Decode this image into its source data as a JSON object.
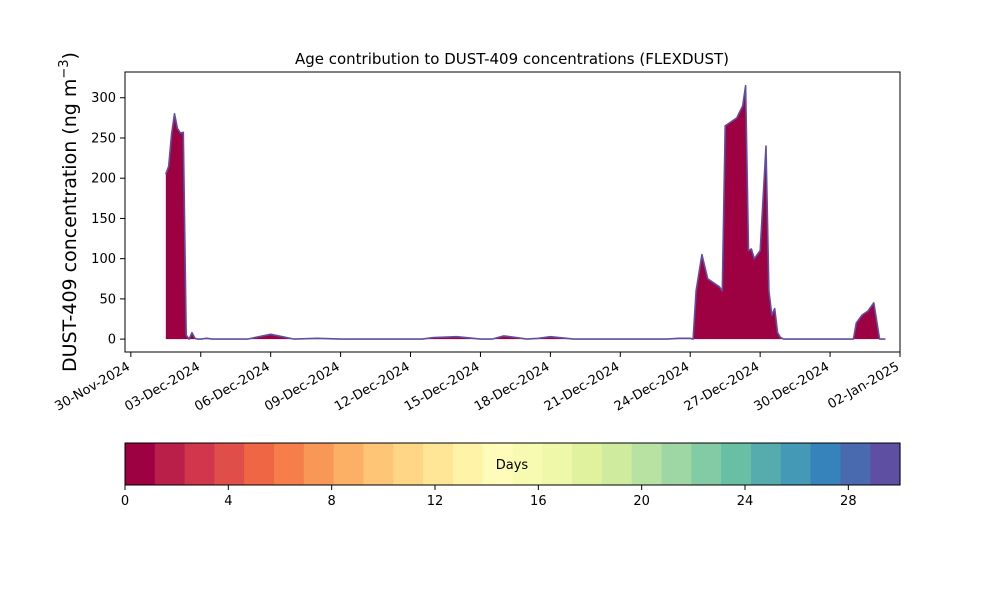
{
  "chart_data": [
    {
      "type": "area",
      "title": "Age contribution to DUST-409 concentrations (FLEXDUST)",
      "ylabel_main": "DUST-409 concentration (ng m",
      "ylabel_sup": "−3",
      "ylabel_close": ")",
      "xlabel": "",
      "x_range": [
        "2024-11-29T18:00",
        "2025-01-02T00:00"
      ],
      "ylim": [
        -16,
        332
      ],
      "yticks": [
        0,
        50,
        100,
        150,
        200,
        250,
        300
      ],
      "xticks": [
        {
          "date": "2024-11-30",
          "label": "30-Nov-2024"
        },
        {
          "date": "2024-12-03",
          "label": "03-Dec-2024"
        },
        {
          "date": "2024-12-06",
          "label": "06-Dec-2024"
        },
        {
          "date": "2024-12-09",
          "label": "09-Dec-2024"
        },
        {
          "date": "2024-12-12",
          "label": "12-Dec-2024"
        },
        {
          "date": "2024-12-15",
          "label": "15-Dec-2024"
        },
        {
          "date": "2024-12-18",
          "label": "18-Dec-2024"
        },
        {
          "date": "2024-12-21",
          "label": "21-Dec-2024"
        },
        {
          "date": "2024-12-24",
          "label": "24-Dec-2024"
        },
        {
          "date": "2024-12-27",
          "label": "27-Dec-2024"
        },
        {
          "date": "2024-12-30",
          "label": "30-Dec-2024"
        },
        {
          "date": "2025-01-02",
          "label": "02-Jan-2025"
        }
      ],
      "grid": false,
      "series": [
        {
          "color": "#9e0142",
          "outline_color": "#5e4fa2",
          "x": [
            "2024-12-01T12:00",
            "2024-12-01T15:00",
            "2024-12-01T18:00",
            "2024-12-01T21:00",
            "2024-12-02T00:00",
            "2024-12-02T03:00",
            "2024-12-02T06:00",
            "2024-12-02T09:00",
            "2024-12-02T12:00",
            "2024-12-02T15:00",
            "2024-12-02T18:00",
            "2024-12-02T21:00",
            "2024-12-03T00:00",
            "2024-12-03T06:00",
            "2024-12-03T12:00",
            "2024-12-04T00:00",
            "2024-12-04T12:00",
            "2024-12-05T00:00",
            "2024-12-06T00:00",
            "2024-12-06T12:00",
            "2024-12-07T00:00",
            "2024-12-08T00:00",
            "2024-12-09T00:00",
            "2024-12-10T00:00",
            "2024-12-11T00:00",
            "2024-12-12T00:00",
            "2024-12-12T12:00",
            "2024-12-13T00:00",
            "2024-12-14T00:00",
            "2024-12-15T00:00",
            "2024-12-15T12:00",
            "2024-12-16T00:00",
            "2024-12-17T00:00",
            "2024-12-17T12:00",
            "2024-12-18T00:00",
            "2024-12-19T00:00",
            "2024-12-20T00:00",
            "2024-12-21T00:00",
            "2024-12-22T00:00",
            "2024-12-23T00:00",
            "2024-12-23T12:00",
            "2024-12-24T00:00",
            "2024-12-24T03:00",
            "2024-12-24T06:00",
            "2024-12-24T12:00",
            "2024-12-24T18:00",
            "2024-12-25T00:00",
            "2024-12-25T06:00",
            "2024-12-25T09:00",
            "2024-12-25T12:00",
            "2024-12-25T18:00",
            "2024-12-26T00:00",
            "2024-12-26T06:00",
            "2024-12-26T09:00",
            "2024-12-26T12:00",
            "2024-12-26T15:00",
            "2024-12-26T18:00",
            "2024-12-27T00:00",
            "2024-12-27T06:00",
            "2024-12-27T09:00",
            "2024-12-27T12:00",
            "2024-12-27T15:00",
            "2024-12-27T18:00",
            "2024-12-27T21:00",
            "2024-12-28T00:00",
            "2024-12-28T03:00",
            "2024-12-28T06:00",
            "2024-12-28T09:00",
            "2024-12-29T00:00",
            "2024-12-30T00:00",
            "2024-12-31T00:00",
            "2024-12-31T03:00",
            "2024-12-31T09:00",
            "2024-12-31T15:00",
            "2024-12-31T21:00",
            "2025-01-01T03:00",
            "2025-01-01T09:00"
          ],
          "y": [
            205,
            215,
            255,
            280,
            262,
            256,
            257,
            5,
            0,
            8,
            1,
            0,
            0,
            1,
            0,
            0,
            0,
            0,
            6,
            3,
            0,
            1,
            0,
            0,
            0,
            0,
            0,
            2,
            3,
            0,
            0,
            4,
            0,
            1,
            3,
            0,
            0,
            0,
            0,
            0,
            1,
            1,
            0,
            60,
            105,
            75,
            70,
            65,
            60,
            265,
            270,
            275,
            290,
            315,
            110,
            112,
            100,
            110,
            240,
            60,
            30,
            38,
            8,
            2,
            0,
            0,
            0,
            0,
            0,
            0,
            0,
            20,
            30,
            35,
            45,
            0,
            0
          ]
        }
      ]
    },
    {
      "type": "colorbar",
      "label": "Days",
      "min": 0,
      "max": 30,
      "ticks": [
        0,
        4,
        8,
        12,
        16,
        20,
        24,
        28
      ],
      "palette": [
        "#9e0142",
        "#b91f48",
        "#d1364d",
        "#e04e4a",
        "#ef6645",
        "#f57e4a",
        "#f99757",
        "#fcb066",
        "#fdc575",
        "#fed685",
        "#fee696",
        "#fff3a8",
        "#fffcb9",
        "#f7fbb2",
        "#eef8a8",
        "#e0f29d",
        "#cfeb9d",
        "#b7e2a1",
        "#9ed7a4",
        "#83cba5",
        "#69bfa4",
        "#56acad",
        "#4499b6",
        "#3682ba",
        "#4a6ab0",
        "#5e4fa2"
      ]
    }
  ]
}
